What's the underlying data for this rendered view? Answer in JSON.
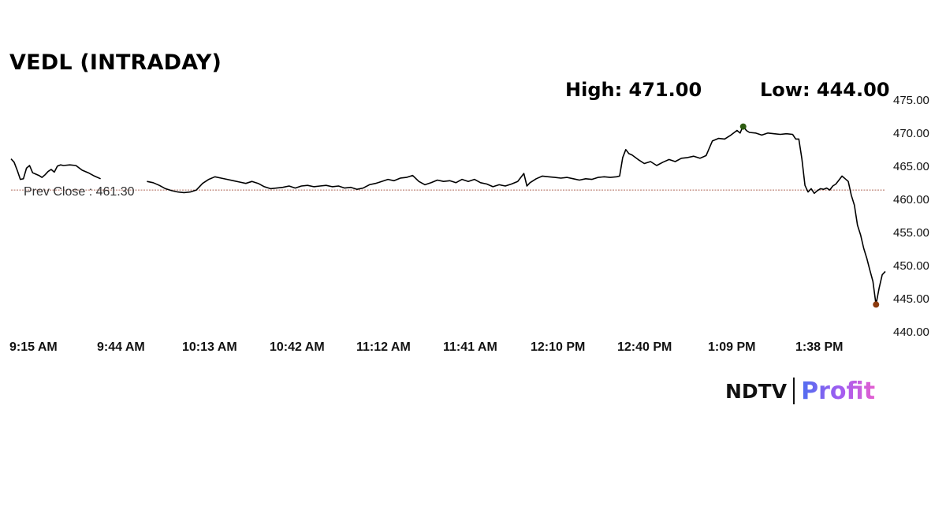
{
  "chart_data": {
    "type": "line",
    "title": "VEDL (INTRADAY)",
    "high_label": "High: 471.00",
    "low_label": "Low: 444.00",
    "high": 471.0,
    "low": 444.0,
    "reference_line": {
      "label": "Prev Close : 461.30",
      "value": 461.3,
      "color": "#b06a5a"
    },
    "x_tick_labels": [
      "9:15 AM",
      "9:44 AM",
      "10:13 AM",
      "10:42 AM",
      "11:12 AM",
      "11:41 AM",
      "12:10 PM",
      "12:40 PM",
      "1:09 PM",
      "1:38 PM"
    ],
    "y_tick_labels": [
      "475.00",
      "470.00",
      "465.00",
      "460.00",
      "455.00",
      "450.00",
      "445.00",
      "440.00"
    ],
    "ylim": [
      440,
      475
    ],
    "xlim": [
      "9:15 AM",
      "1:58 PM"
    ],
    "grid": false,
    "series": [
      {
        "color": "#000000",
        "points": [
          [
            "9:15 AM",
            466.0
          ],
          [
            "9:16 AM",
            465.5
          ],
          [
            "9:17 AM",
            464.3
          ],
          [
            "9:18 AM",
            462.9
          ],
          [
            "9:19 AM",
            463.0
          ],
          [
            "9:20 AM",
            464.6
          ],
          [
            "9:21 AM",
            465.0
          ],
          [
            "9:22 AM",
            463.9
          ],
          [
            "9:23 AM",
            463.7
          ],
          [
            "9:24 AM",
            463.5
          ],
          [
            "9:25 AM",
            463.2
          ],
          [
            "9:26 AM",
            463.6
          ],
          [
            "9:27 AM",
            464.1
          ],
          [
            "9:28 AM",
            464.4
          ],
          [
            "9:29 AM",
            464.0
          ],
          [
            "9:30 AM",
            464.9
          ],
          [
            "9:31 AM",
            465.1
          ],
          [
            "9:32 AM",
            465.0
          ],
          [
            "9:34 AM",
            465.1
          ],
          [
            "9:36 AM",
            465.0
          ],
          [
            "9:38 AM",
            464.3
          ],
          [
            "9:40 AM",
            463.9
          ],
          [
            "9:42 AM",
            463.4
          ],
          [
            "9:44 AM",
            463.0
          ],
          [
            "9:59 AM",
            462.6
          ],
          [
            "10:01 AM",
            462.4
          ],
          [
            "10:03 AM",
            462.0
          ],
          [
            "10:05 AM",
            461.5
          ],
          [
            "10:07 AM",
            461.2
          ],
          [
            "10:09 AM",
            461.0
          ],
          [
            "10:11 AM",
            460.9
          ],
          [
            "10:13 AM",
            461.0
          ],
          [
            "10:15 AM",
            461.3
          ],
          [
            "10:17 AM",
            462.3
          ],
          [
            "10:19 AM",
            462.9
          ],
          [
            "10:21 AM",
            463.3
          ],
          [
            "10:23 AM",
            463.1
          ],
          [
            "10:25 AM",
            462.9
          ],
          [
            "10:27 AM",
            462.7
          ],
          [
            "10:29 AM",
            462.5
          ],
          [
            "10:31 AM",
            462.3
          ],
          [
            "10:33 AM",
            462.6
          ],
          [
            "10:35 AM",
            462.3
          ],
          [
            "10:37 AM",
            461.8
          ],
          [
            "10:39 AM",
            461.5
          ],
          [
            "10:41 AM",
            461.6
          ],
          [
            "10:43 AM",
            461.7
          ],
          [
            "10:45 AM",
            461.9
          ],
          [
            "10:47 AM",
            461.6
          ],
          [
            "10:49 AM",
            461.9
          ],
          [
            "10:51 AM",
            462.0
          ],
          [
            "10:53 AM",
            461.8
          ],
          [
            "10:55 AM",
            461.9
          ],
          [
            "10:57 AM",
            462.0
          ],
          [
            "10:59 AM",
            461.8
          ],
          [
            "11:01 AM",
            461.9
          ],
          [
            "11:03 AM",
            461.6
          ],
          [
            "11:05 AM",
            461.7
          ],
          [
            "11:07 AM",
            461.4
          ],
          [
            "11:09 AM",
            461.6
          ],
          [
            "11:11 AM",
            462.1
          ],
          [
            "11:13 AM",
            462.3
          ],
          [
            "11:15 AM",
            462.6
          ],
          [
            "11:17 AM",
            462.9
          ],
          [
            "11:19 AM",
            462.7
          ],
          [
            "11:21 AM",
            463.1
          ],
          [
            "11:23 AM",
            463.2
          ],
          [
            "11:25 AM",
            463.5
          ],
          [
            "11:27 AM",
            462.6
          ],
          [
            "11:29 AM",
            462.1
          ],
          [
            "11:31 AM",
            462.4
          ],
          [
            "11:33 AM",
            462.8
          ],
          [
            "11:35 AM",
            462.6
          ],
          [
            "11:37 AM",
            462.7
          ],
          [
            "11:39 AM",
            462.4
          ],
          [
            "11:41 AM",
            462.9
          ],
          [
            "11:43 AM",
            462.6
          ],
          [
            "11:45 AM",
            462.9
          ],
          [
            "11:47 AM",
            462.4
          ],
          [
            "11:49 AM",
            462.2
          ],
          [
            "11:51 AM",
            461.8
          ],
          [
            "11:53 AM",
            462.1
          ],
          [
            "11:55 AM",
            461.9
          ],
          [
            "11:57 AM",
            462.2
          ],
          [
            "11:59 AM",
            462.6
          ],
          [
            "12:01 PM",
            463.8
          ],
          [
            "12:02 PM",
            461.9
          ],
          [
            "12:03 PM",
            462.4
          ],
          [
            "12:05 PM",
            463.0
          ],
          [
            "12:07 PM",
            463.4
          ],
          [
            "12:09 PM",
            463.3
          ],
          [
            "12:11 PM",
            463.2
          ],
          [
            "12:13 PM",
            463.1
          ],
          [
            "12:15 PM",
            463.2
          ],
          [
            "12:17 PM",
            463.0
          ],
          [
            "12:19 PM",
            462.8
          ],
          [
            "12:21 PM",
            463.0
          ],
          [
            "12:23 PM",
            462.9
          ],
          [
            "12:25 PM",
            463.2
          ],
          [
            "12:27 PM",
            463.3
          ],
          [
            "12:29 PM",
            463.2
          ],
          [
            "12:31 PM",
            463.3
          ],
          [
            "12:32 PM",
            463.4
          ],
          [
            "12:33 PM",
            466.2
          ],
          [
            "12:34 PM",
            467.4
          ],
          [
            "12:35 PM",
            466.8
          ],
          [
            "12:36 PM",
            466.6
          ],
          [
            "12:38 PM",
            465.9
          ],
          [
            "12:40 PM",
            465.3
          ],
          [
            "12:42 PM",
            465.6
          ],
          [
            "12:44 PM",
            465.0
          ],
          [
            "12:46 PM",
            465.5
          ],
          [
            "12:48 PM",
            465.9
          ],
          [
            "12:50 PM",
            465.6
          ],
          [
            "12:52 PM",
            466.1
          ],
          [
            "12:54 PM",
            466.2
          ],
          [
            "12:56 PM",
            466.4
          ],
          [
            "12:58 PM",
            466.1
          ],
          [
            "1:00 PM",
            466.5
          ],
          [
            "1:02 PM",
            468.7
          ],
          [
            "1:04 PM",
            469.1
          ],
          [
            "1:06 PM",
            469.0
          ],
          [
            "1:08 PM",
            469.6
          ],
          [
            "1:10 PM",
            470.3
          ],
          [
            "1:11 PM",
            469.9
          ],
          [
            "1:12 PM",
            471.0
          ],
          [
            "1:13 PM",
            470.3
          ],
          [
            "1:14 PM",
            470.0
          ],
          [
            "1:16 PM",
            469.9
          ],
          [
            "1:18 PM",
            469.6
          ],
          [
            "1:20 PM",
            469.9
          ],
          [
            "1:22 PM",
            469.8
          ],
          [
            "1:24 PM",
            469.7
          ],
          [
            "1:26 PM",
            469.8
          ],
          [
            "1:28 PM",
            469.7
          ],
          [
            "1:29 PM",
            469.0
          ],
          [
            "1:30 PM",
            469.0
          ],
          [
            "1:31 PM",
            466.0
          ],
          [
            "1:32 PM",
            462.0
          ],
          [
            "1:33 PM",
            461.0
          ],
          [
            "1:34 PM",
            461.5
          ],
          [
            "1:35 PM",
            460.8
          ],
          [
            "1:36 PM",
            461.2
          ],
          [
            "1:37 PM",
            461.5
          ],
          [
            "1:38 PM",
            461.4
          ],
          [
            "1:39 PM",
            461.6
          ],
          [
            "1:40 PM",
            461.3
          ],
          [
            "1:41 PM",
            461.9
          ],
          [
            "1:42 PM",
            462.2
          ],
          [
            "1:43 PM",
            462.8
          ],
          [
            "1:44 PM",
            463.4
          ],
          [
            "1:45 PM",
            463.0
          ],
          [
            "1:46 PM",
            462.6
          ],
          [
            "1:47 PM",
            460.5
          ],
          [
            "1:48 PM",
            459.0
          ],
          [
            "1:49 PM",
            456.0
          ],
          [
            "1:50 PM",
            454.5
          ],
          [
            "1:51 PM",
            452.5
          ],
          [
            "1:52 PM",
            451.0
          ],
          [
            "1:53 PM",
            449.2
          ],
          [
            "1:54 PM",
            447.5
          ],
          [
            "1:55 PM",
            444.0
          ],
          [
            "1:56 PM",
            446.5
          ],
          [
            "1:57 PM",
            448.5
          ],
          [
            "1:58 PM",
            449.0
          ]
        ]
      }
    ],
    "high_marker_color": "#2e5c12",
    "low_marker_color": "#8b3a0f"
  },
  "branding": {
    "ndtv": "NDTV",
    "profit": "Profit"
  }
}
